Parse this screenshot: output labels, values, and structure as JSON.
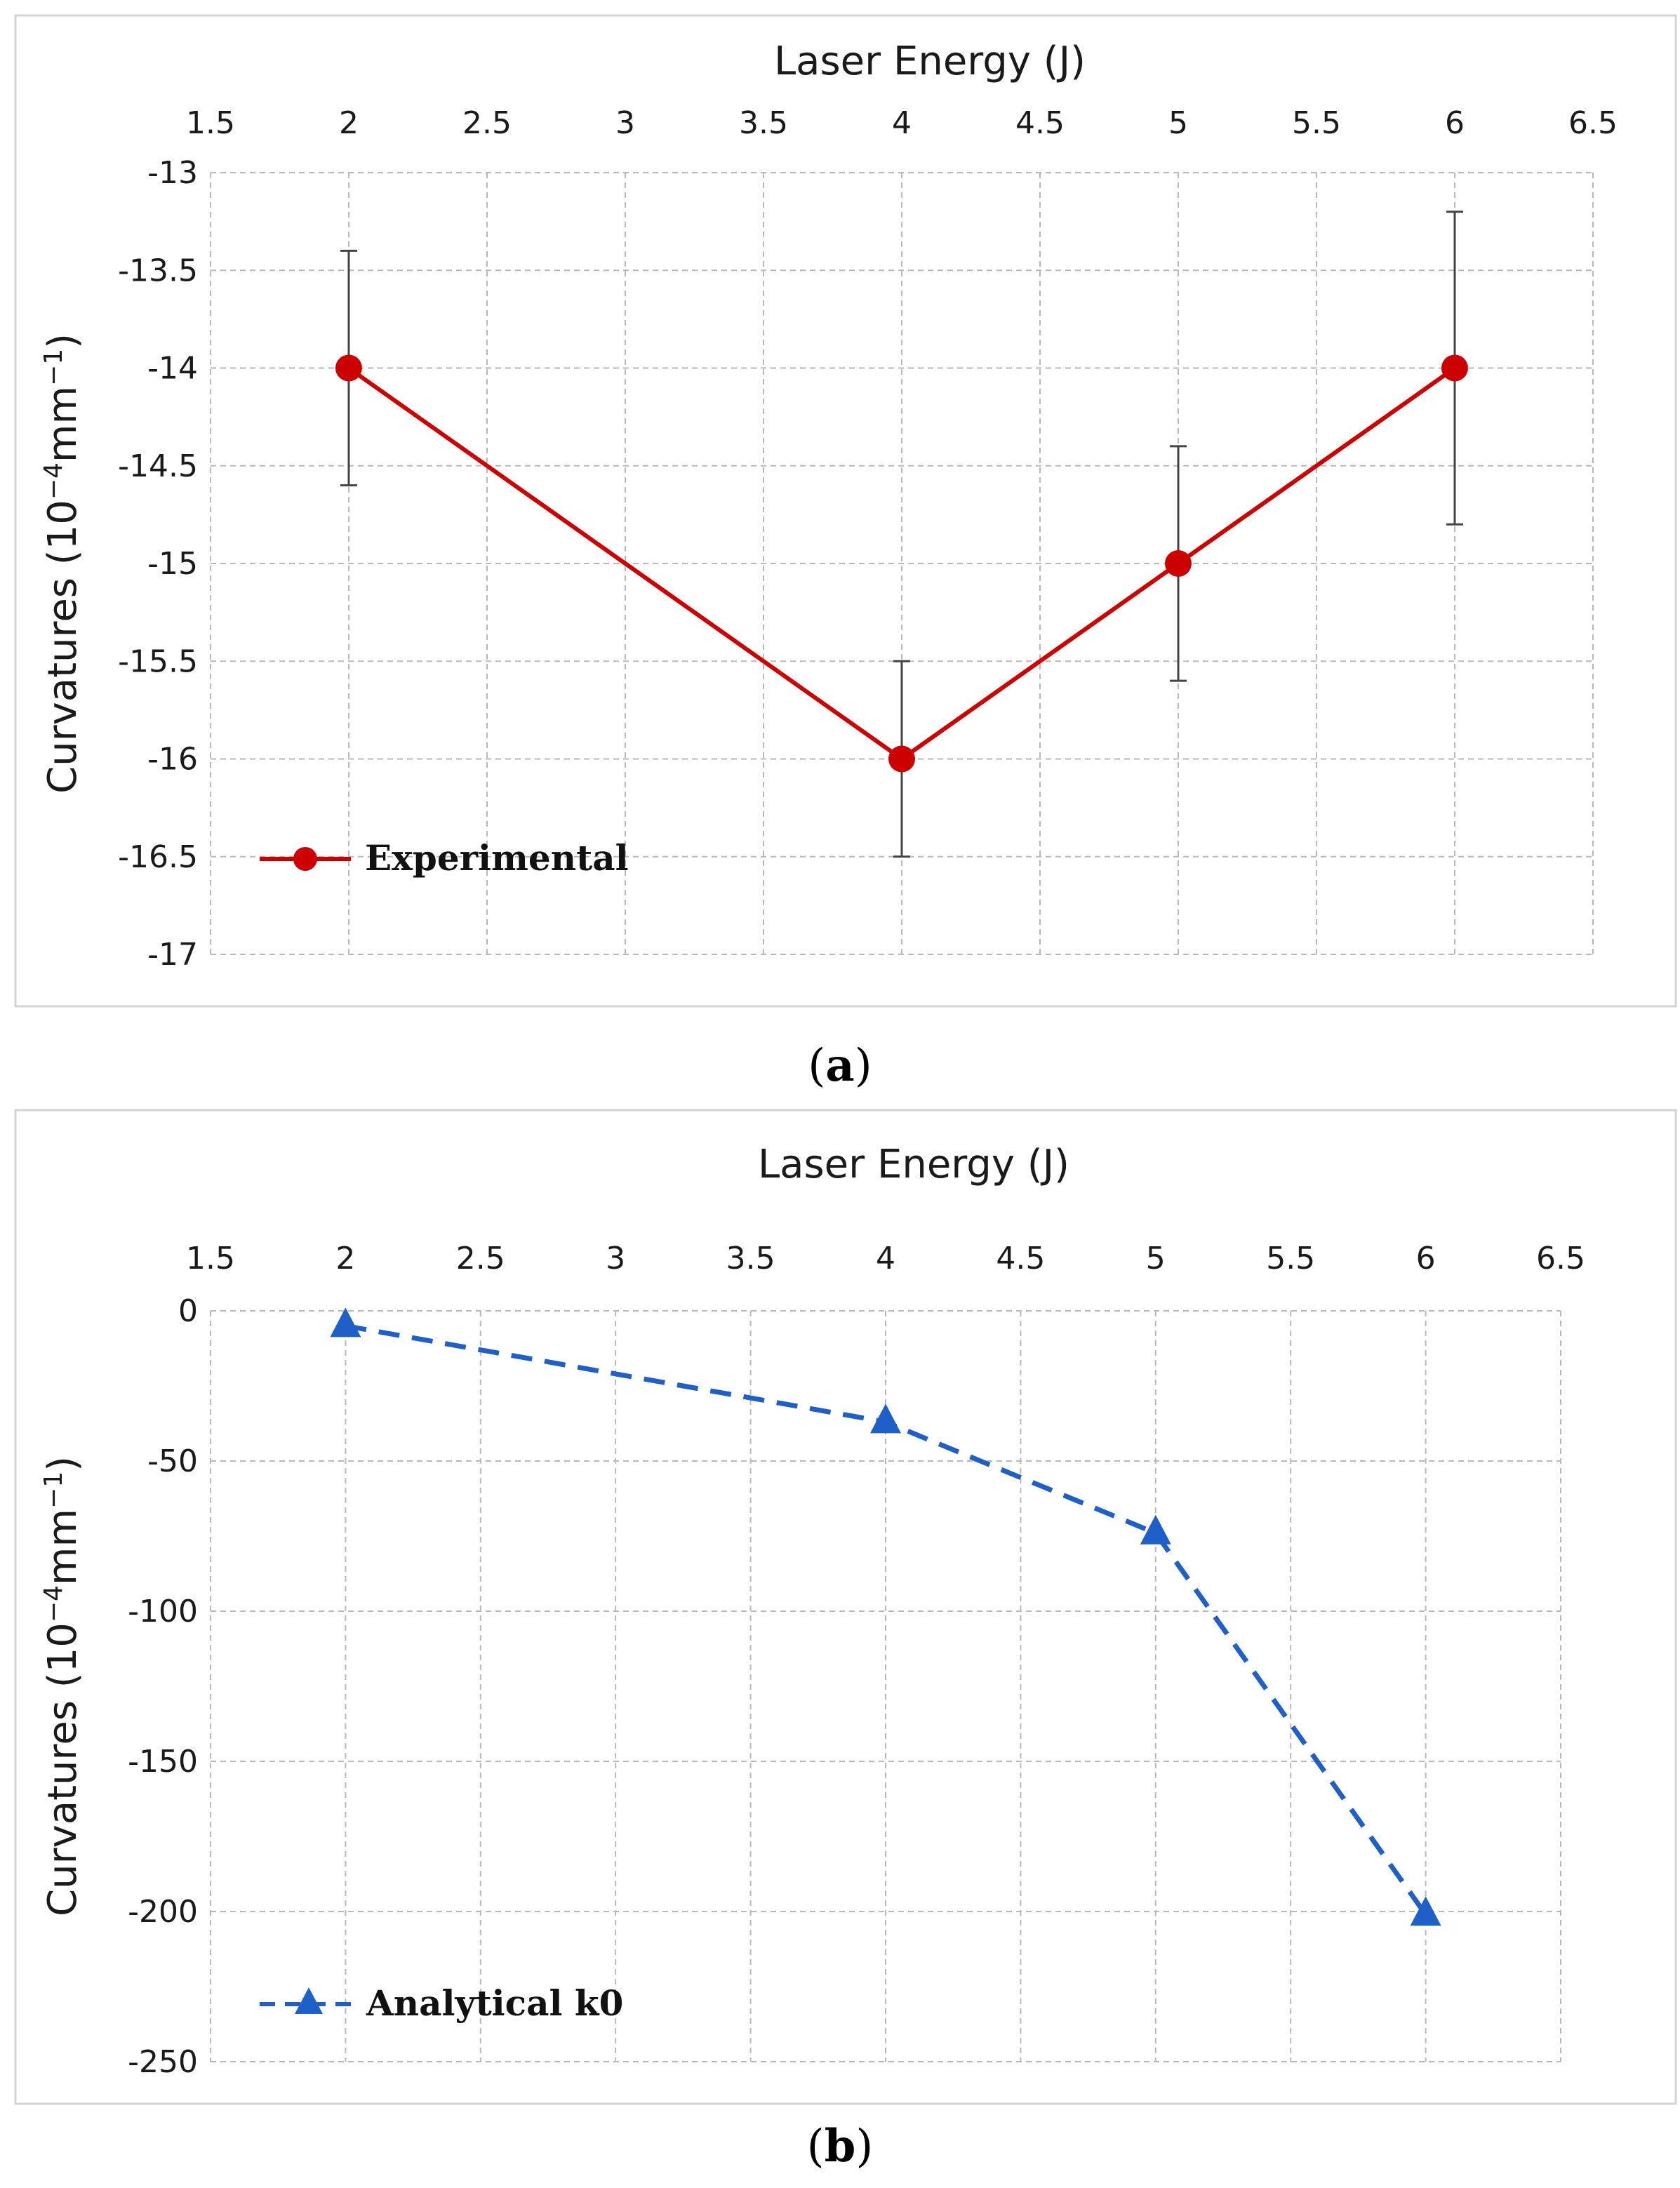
{
  "chart_data": [
    {
      "type": "line",
      "panel_label": "a",
      "title": "",
      "xlabel": "Laser Energy (J)",
      "ylabel_main": "Curvatures (10",
      "ylabel_sup1": "−4",
      "ylabel_mid": "mm",
      "ylabel_sup2": "−1",
      "ylabel_end": ")",
      "xlim": [
        1.5,
        6.5
      ],
      "ylim": [
        -17,
        -13
      ],
      "xticks": [
        "1.5",
        "2",
        "2.5",
        "3",
        "3.5",
        "4",
        "4.5",
        "5",
        "5.5",
        "6",
        "6.5"
      ],
      "yticks": [
        "-13",
        "-13.5",
        "-14",
        "-14.5",
        "-15",
        "-15.5",
        "-16",
        "-16.5",
        "-17"
      ],
      "grid": true,
      "legend_position": "bottom-left",
      "series": [
        {
          "name": "Experimental",
          "color": "#cc0000",
          "marker": "circle",
          "line_style": "solid",
          "x": [
            2,
            4,
            5,
            6
          ],
          "y": [
            -14,
            -16,
            -15,
            -14
          ],
          "error": [
            0.6,
            0.5,
            0.6,
            0.8
          ]
        }
      ]
    },
    {
      "type": "line",
      "panel_label": "b",
      "title": "",
      "xlabel": "Laser Energy (J)",
      "ylabel_main": "Curvatures (10",
      "ylabel_sup1": "−4",
      "ylabel_mid": "mm",
      "ylabel_sup2": "−1",
      "ylabel_end": ")",
      "xlim": [
        1.5,
        6.5
      ],
      "ylim": [
        -250,
        0
      ],
      "xticks": [
        "1.5",
        "2",
        "2.5",
        "3",
        "3.5",
        "4",
        "4.5",
        "5",
        "5.5",
        "6",
        "6.5"
      ],
      "yticks": [
        "0",
        "-50",
        "-100",
        "-150",
        "-200",
        "-250"
      ],
      "grid": true,
      "legend_position": "bottom-left",
      "series": [
        {
          "name": "Analytical k0",
          "color": "#1f5fc8",
          "marker": "triangle",
          "line_style": "dashed",
          "x": [
            2,
            4,
            5,
            6
          ],
          "y": [
            -5,
            -37,
            -74,
            -201
          ]
        }
      ]
    }
  ]
}
